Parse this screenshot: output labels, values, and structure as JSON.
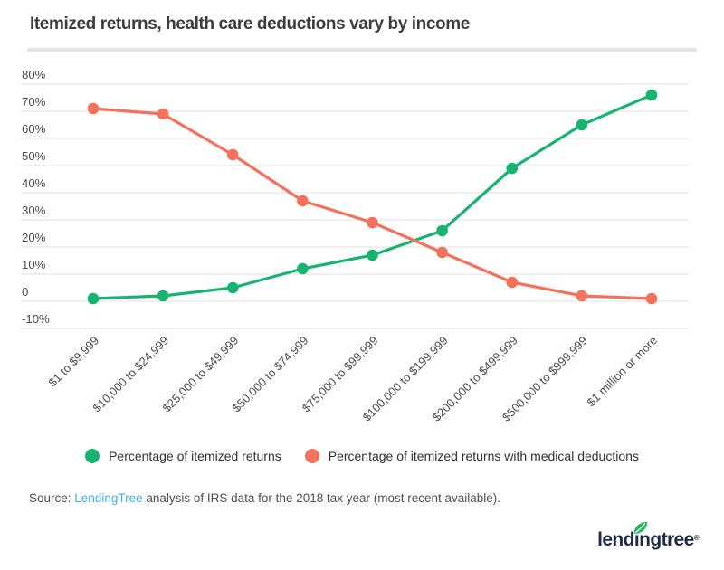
{
  "header": {
    "title": "Itemized returns, health care deductions vary by income"
  },
  "chart_data": {
    "type": "line",
    "title": "Itemized returns, health care deductions vary by income",
    "categories": [
      "$1 to $9,999",
      "$10,000 to $24,999",
      "$25,000 to $49,999",
      "$50,000 to $74,999",
      "$75,000 to $99,999",
      "$100,000 to $199,999",
      "$200,000 to $499,999",
      "$500,000 to $999,999",
      "$1 million or more"
    ],
    "series": [
      {
        "name": "Percentage of itemized returns",
        "color": "#17b471",
        "values": [
          1,
          2,
          5,
          12,
          17,
          26,
          49,
          65,
          76
        ]
      },
      {
        "name": "Percentage of itemized returns with medical deductions",
        "color": "#f4715c",
        "values": [
          71,
          69,
          54,
          37,
          29,
          18,
          7,
          2,
          1
        ]
      }
    ],
    "y_axis": {
      "tick_labels": [
        "80%",
        "70%",
        "60%",
        "50%",
        "40%",
        "30%",
        "20%",
        "10%",
        "0",
        "-10%"
      ],
      "tick_values": [
        80,
        70,
        60,
        50,
        40,
        30,
        20,
        10,
        0,
        -10
      ],
      "min": -10,
      "max": 80,
      "grid": true
    },
    "xlabel": "",
    "ylabel": "",
    "legend_position": "bottom",
    "grid_color": "#e1e1e1",
    "axis_text_color": "#4b4b4b"
  },
  "footer": {
    "source_prefix": "Source: ",
    "source_link": "LendingTree",
    "source_suffix": " analysis of IRS data for the 2018 tax year (most recent available).",
    "logo_text": "lendingtree",
    "logo_reg": "®"
  },
  "colors": {
    "accent_green": "#17b471",
    "accent_coral": "#f4715c",
    "link_blue": "#3eb1e6",
    "logo_navy": "#1d2a4a",
    "leaf_green": "#2eb568"
  }
}
